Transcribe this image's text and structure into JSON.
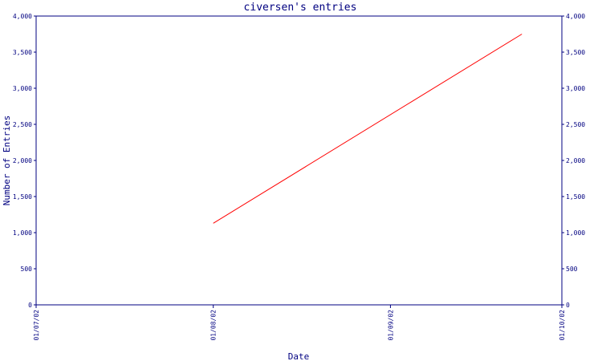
{
  "chart_data": {
    "type": "line",
    "title": "civersen's entries",
    "xlabel": "Date",
    "ylabel": "Number of Entries",
    "x_ticks": [
      "01/07/02",
      "01/08/02",
      "01/09/02",
      "01/10/02"
    ],
    "y_ticks": [
      "0",
      "500",
      "1,000",
      "1,500",
      "2,000",
      "2,500",
      "3,000",
      "3,500",
      "4,000"
    ],
    "xlim": [
      "01/07/02",
      "01/10/02"
    ],
    "ylim": [
      0,
      4000
    ],
    "grid": false,
    "y_axis_labels_both_sides": true,
    "series": [
      {
        "x": [
          "01/08/02",
          "24/09/02"
        ],
        "y": [
          1130,
          3750
        ]
      }
    ],
    "colors": {
      "axis": "#000080",
      "text": "#000080",
      "line": "#ff0000",
      "background": "#ffffff"
    }
  }
}
